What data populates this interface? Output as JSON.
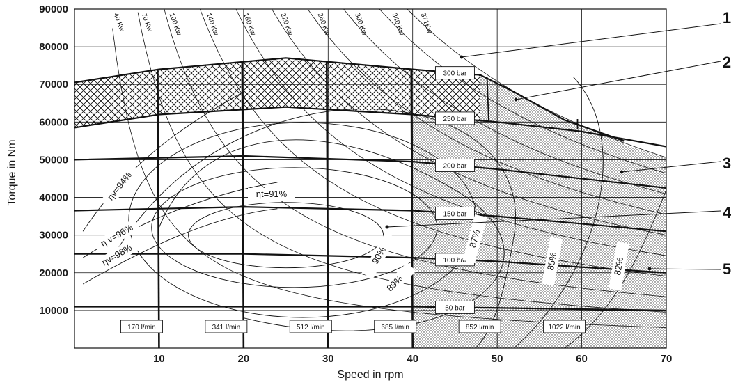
{
  "chart_data": {
    "type": "line",
    "xlabel": "Speed in rpm",
    "ylabel": "Torque in Nm",
    "xlim": [
      0,
      70
    ],
    "ylim": [
      0,
      90000
    ],
    "x_ticks": [
      "10",
      "20",
      "30",
      "40",
      "50",
      "60",
      "70"
    ],
    "y_ticks": [
      "10000",
      "20000",
      "30000",
      "40000",
      "50000",
      "60000",
      "70000",
      "80000",
      "90000"
    ],
    "grid": true,
    "pressure_lines": [
      {
        "label": "300 bar",
        "points": [
          [
            0,
            70500
          ],
          [
            10,
            74000
          ],
          [
            25,
            77000
          ],
          [
            40,
            74000
          ],
          [
            48,
            72500
          ],
          [
            52,
            68000
          ],
          [
            58,
            60500
          ],
          [
            65,
            55000
          ]
        ]
      },
      {
        "label": "250 bar",
        "points": [
          [
            0,
            58500
          ],
          [
            10,
            62000
          ],
          [
            25,
            64000
          ],
          [
            40,
            62000
          ],
          [
            50,
            60000
          ],
          [
            60,
            57500
          ],
          [
            70,
            53500
          ]
        ]
      },
      {
        "label": "200 bar",
        "points": [
          [
            0,
            50000
          ],
          [
            20,
            51000
          ],
          [
            40,
            49500
          ],
          [
            50,
            47500
          ],
          [
            70,
            42500
          ]
        ]
      },
      {
        "label": "150 bar",
        "points": [
          [
            0,
            36500
          ],
          [
            20,
            37500
          ],
          [
            40,
            36500
          ],
          [
            50,
            35000
          ],
          [
            70,
            31000
          ]
        ]
      },
      {
        "label": "100 bar",
        "points": [
          [
            0,
            25000
          ],
          [
            20,
            25000
          ],
          [
            40,
            24000
          ],
          [
            50,
            23000
          ],
          [
            70,
            20000
          ]
        ]
      },
      {
        "label": "50  bar",
        "points": [
          [
            0,
            11000
          ],
          [
            20,
            11000
          ],
          [
            40,
            11000
          ],
          [
            70,
            10000
          ]
        ]
      }
    ],
    "flow_lines": [
      {
        "label": "170 l/min",
        "x": 10
      },
      {
        "label": "341 l/min",
        "x": 20
      },
      {
        "label": "512 l/min",
        "x": 30
      },
      {
        "label": "685 l/min",
        "x": 40
      },
      {
        "label": "852 l/min",
        "x": 50
      },
      {
        "label": "1022 l/min",
        "x": 60
      }
    ],
    "power_lines": [
      "40 Kw",
      "70 Kw",
      "100 Kw",
      "140 Kw",
      "180 Kw",
      "220 Kw",
      "260 Kw",
      "300 Kw",
      "340 Kw",
      "371Kw"
    ],
    "efficiency_labels": {
      "total": [
        "ηt=91%",
        "90%",
        "89%",
        "87%",
        "85%",
        "82%"
      ],
      "volumetric": [
        "ηv=94%",
        "η v=96%",
        "ηv=98%"
      ]
    },
    "callouts": [
      "1",
      "2",
      "3",
      "4",
      "5"
    ]
  },
  "colors": {
    "line": "#111111",
    "grid": "#111111",
    "background": "#ffffff"
  }
}
